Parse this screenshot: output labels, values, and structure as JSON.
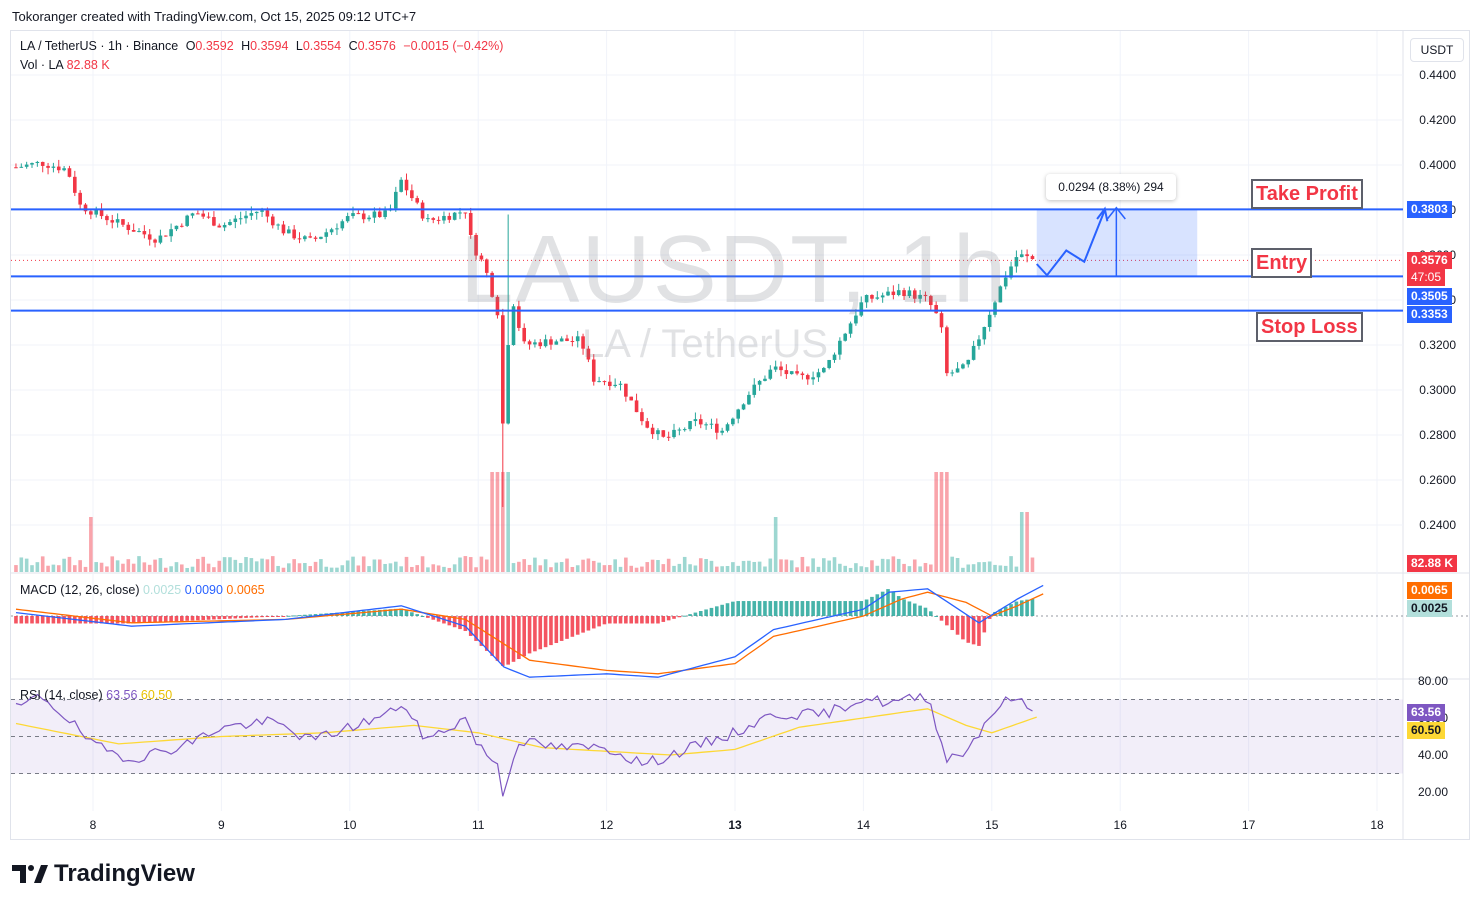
{
  "credit": "Tokoranger created with TradingView.com, Oct 15, 2025 09:12 UTC+7",
  "legend": {
    "symbol": "LA / TetherUS · 1h · Binance",
    "o_label": "O",
    "o": "0.3592",
    "h_label": "H",
    "h": "0.3594",
    "l_label": "L",
    "l": "0.3554",
    "c_label": "C",
    "c": "0.3576",
    "change": "−0.0015 (−0.42%)",
    "vol_label": "Vol · LA",
    "vol": "82.88 K"
  },
  "watermark": {
    "line1": "LAUSDT, 1h",
    "line2": "LA / TetherUS"
  },
  "currency": "USDT",
  "macd": {
    "label": "MACD (12, 26, close)",
    "hist": "0.0025",
    "macd": "0.0090",
    "signal": "0.0065"
  },
  "rsi": {
    "label": "RSI (14, close)",
    "rsi": "63.56",
    "ma": "60.50"
  },
  "annotations": {
    "take_profit": "Take Profit",
    "entry": "Entry",
    "stop_loss": "Stop Loss",
    "measure": "0.0294 (8.38%) 294"
  },
  "price_tags": {
    "tp": "0.3803",
    "last": "0.3576",
    "countdown": "47:05",
    "entry": "0.3505",
    "sl": "0.3353",
    "vol": "82.88 K",
    "macd_signal": "0.0065",
    "macd_hist": "0.0025",
    "rsi": "63.56",
    "rsi_ma": "60.50"
  },
  "brand": "TradingView",
  "colors": {
    "up": "#26a69a",
    "down": "#f23645",
    "level_line": "#2962ff",
    "macd": "#2962ff",
    "signal": "#ff6d00",
    "rsi": "#7e57c2",
    "rsi_ma": "#fdd835"
  },
  "chart_data": [
    {
      "type": "candlestick",
      "title": "LA / TetherUS · 1h · Binance",
      "x_ticks": [
        "8",
        "9",
        "10",
        "11",
        "12",
        "13",
        "14",
        "15",
        "16",
        "17",
        "18"
      ],
      "y_ticks": [
        "0.4400",
        "0.4200",
        "0.4000",
        "0.3800",
        "0.3600",
        "0.3400",
        "0.3200",
        "0.3000",
        "0.2800",
        "0.2600",
        "0.2400"
      ],
      "ylim": [
        0.232,
        0.446
      ],
      "levels": {
        "take_profit": 0.3803,
        "entry": 0.3505,
        "stop_loss": 0.3353
      },
      "close_path": [
        [
          7.4,
          0.399
        ],
        [
          7.6,
          0.401
        ],
        [
          7.8,
          0.398
        ],
        [
          7.9,
          0.382
        ],
        [
          8.2,
          0.374
        ],
        [
          8.5,
          0.367
        ],
        [
          8.8,
          0.379
        ],
        [
          9.0,
          0.373
        ],
        [
          9.3,
          0.38
        ],
        [
          9.5,
          0.37
        ],
        [
          9.7,
          0.366
        ],
        [
          10.0,
          0.377
        ],
        [
          10.3,
          0.378
        ],
        [
          10.4,
          0.393
        ],
        [
          10.6,
          0.375
        ],
        [
          10.8,
          0.378
        ],
        [
          10.9,
          0.38
        ],
        [
          10.95,
          0.365
        ],
        [
          11.05,
          0.355
        ],
        [
          11.15,
          0.335
        ],
        [
          11.2,
          0.275
        ],
        [
          11.25,
          0.345
        ],
        [
          11.35,
          0.32
        ],
        [
          11.6,
          0.322
        ],
        [
          11.8,
          0.322
        ],
        [
          11.9,
          0.305
        ],
        [
          12.1,
          0.303
        ],
        [
          12.3,
          0.285
        ],
        [
          12.45,
          0.278
        ],
        [
          12.7,
          0.286
        ],
        [
          12.9,
          0.282
        ],
        [
          13.1,
          0.298
        ],
        [
          13.3,
          0.31
        ],
        [
          13.5,
          0.305
        ],
        [
          13.7,
          0.309
        ],
        [
          13.8,
          0.32
        ],
        [
          14.0,
          0.34
        ],
        [
          14.3,
          0.344
        ],
        [
          14.5,
          0.34
        ],
        [
          14.6,
          0.33
        ],
        [
          14.65,
          0.307
        ],
        [
          14.8,
          0.31
        ],
        [
          14.95,
          0.33
        ],
        [
          15.1,
          0.35
        ],
        [
          15.2,
          0.36
        ],
        [
          15.35,
          0.3576
        ]
      ],
      "volume_peaks": [
        {
          "x": 8.4,
          "value": 0.0
        }
      ]
    },
    {
      "type": "line",
      "title": "MACD (12, 26, close)",
      "series": [
        {
          "name": "MACD",
          "points": [
            [
              7.4,
              0.001
            ],
            [
              8.3,
              -0.003
            ],
            [
              9.5,
              -0.001
            ],
            [
              10.4,
              0.003
            ],
            [
              10.9,
              -0.003
            ],
            [
              11.2,
              -0.015
            ],
            [
              11.4,
              -0.018
            ],
            [
              12.0,
              -0.017
            ],
            [
              12.4,
              -0.018
            ],
            [
              13.0,
              -0.012
            ],
            [
              13.3,
              -0.004
            ],
            [
              14.0,
              0.002
            ],
            [
              14.2,
              0.007
            ],
            [
              14.5,
              0.008
            ],
            [
              14.7,
              0.003
            ],
            [
              14.9,
              -0.002
            ],
            [
              15.2,
              0.005
            ],
            [
              15.4,
              0.009
            ]
          ]
        },
        {
          "name": "Signal",
          "points": [
            [
              7.4,
              0.002
            ],
            [
              8.3,
              -0.002
            ],
            [
              9.5,
              -0.001
            ],
            [
              10.4,
              0.002
            ],
            [
              10.9,
              -0.001
            ],
            [
              11.4,
              -0.013
            ],
            [
              12.0,
              -0.016
            ],
            [
              12.4,
              -0.017
            ],
            [
              13.0,
              -0.014
            ],
            [
              13.3,
              -0.006
            ],
            [
              14.0,
              0.0
            ],
            [
              14.3,
              0.005
            ],
            [
              14.5,
              0.007
            ],
            [
              14.8,
              0.004
            ],
            [
              15.0,
              0.0
            ],
            [
              15.2,
              0.003
            ],
            [
              15.4,
              0.0065
            ]
          ]
        }
      ]
    },
    {
      "type": "line",
      "title": "RSI (14, close)",
      "y_ticks": [
        "80.00",
        "60.00",
        "40.00",
        "20.00"
      ],
      "levels": [
        70,
        50,
        30
      ],
      "series": [
        {
          "name": "RSI",
          "points": [
            [
              7.4,
              65
            ],
            [
              7.6,
              72
            ],
            [
              7.8,
              60
            ],
            [
              8.0,
              45
            ],
            [
              8.3,
              38
            ],
            [
              8.7,
              45
            ],
            [
              9.0,
              55
            ],
            [
              9.4,
              58
            ],
            [
              9.7,
              48
            ],
            [
              10.0,
              55
            ],
            [
              10.3,
              62
            ],
            [
              10.4,
              68
            ],
            [
              10.6,
              48
            ],
            [
              10.9,
              60
            ],
            [
              11.0,
              45
            ],
            [
              11.15,
              35
            ],
            [
              11.2,
              17
            ],
            [
              11.3,
              48
            ],
            [
              11.6,
              44
            ],
            [
              12.0,
              44
            ],
            [
              12.3,
              35
            ],
            [
              12.5,
              40
            ],
            [
              13.0,
              52
            ],
            [
              13.3,
              62
            ],
            [
              13.7,
              62
            ],
            [
              14.0,
              71
            ],
            [
              14.2,
              68
            ],
            [
              14.5,
              72
            ],
            [
              14.65,
              38
            ],
            [
              14.8,
              42
            ],
            [
              15.0,
              63
            ],
            [
              15.15,
              71
            ],
            [
              15.35,
              63.56
            ]
          ]
        },
        {
          "name": "RSI MA",
          "points": [
            [
              7.4,
              57
            ],
            [
              8.2,
              46
            ],
            [
              9.0,
              50
            ],
            [
              9.8,
              52
            ],
            [
              10.5,
              56
            ],
            [
              11.0,
              52
            ],
            [
              11.5,
              44
            ],
            [
              12.0,
              42
            ],
            [
              12.5,
              40
            ],
            [
              13.0,
              43
            ],
            [
              13.5,
              55
            ],
            [
              14.0,
              60
            ],
            [
              14.5,
              65
            ],
            [
              14.8,
              56
            ],
            [
              15.0,
              52
            ],
            [
              15.35,
              60.5
            ]
          ]
        }
      ]
    }
  ]
}
